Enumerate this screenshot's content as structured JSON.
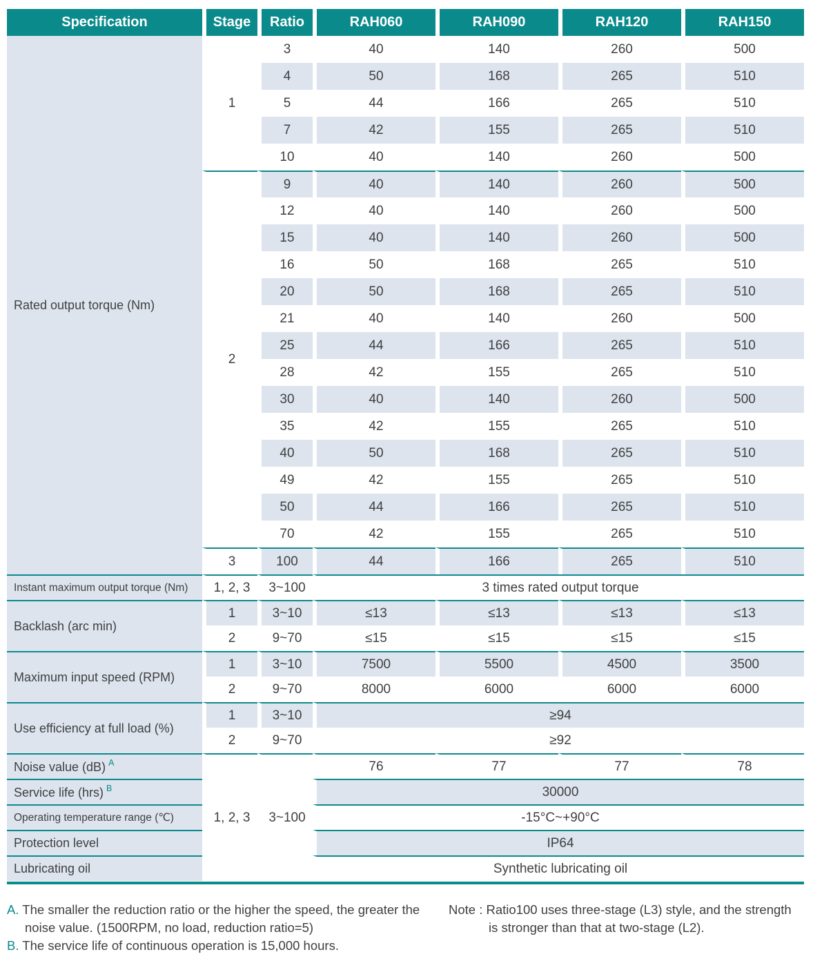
{
  "colors": {
    "teal": "#0b8a8c",
    "row_light": "#dde4ee",
    "text": "#3f3f3f"
  },
  "header": {
    "columns": [
      "Specification",
      "Stage",
      "Ratio",
      "RAH060",
      "RAH090",
      "RAH120",
      "RAH150"
    ]
  },
  "rated_output_torque": {
    "label": "Rated output torque (Nm)",
    "stages": [
      {
        "stage": "1",
        "rows": [
          [
            "3",
            "40",
            "140",
            "260",
            "500"
          ],
          [
            "4",
            "50",
            "168",
            "265",
            "510"
          ],
          [
            "5",
            "44",
            "166",
            "265",
            "510"
          ],
          [
            "7",
            "42",
            "155",
            "265",
            "510"
          ],
          [
            "10",
            "40",
            "140",
            "260",
            "500"
          ]
        ]
      },
      {
        "stage": "2",
        "rows": [
          [
            "9",
            "40",
            "140",
            "260",
            "500"
          ],
          [
            "12",
            "40",
            "140",
            "260",
            "500"
          ],
          [
            "15",
            "40",
            "140",
            "260",
            "500"
          ],
          [
            "16",
            "50",
            "168",
            "265",
            "510"
          ],
          [
            "20",
            "50",
            "168",
            "265",
            "510"
          ],
          [
            "21",
            "40",
            "140",
            "260",
            "500"
          ],
          [
            "25",
            "44",
            "166",
            "265",
            "510"
          ],
          [
            "28",
            "42",
            "155",
            "265",
            "510"
          ],
          [
            "30",
            "40",
            "140",
            "260",
            "500"
          ],
          [
            "35",
            "42",
            "155",
            "265",
            "510"
          ],
          [
            "40",
            "50",
            "168",
            "265",
            "510"
          ],
          [
            "49",
            "42",
            "155",
            "265",
            "510"
          ],
          [
            "50",
            "44",
            "166",
            "265",
            "510"
          ],
          [
            "70",
            "42",
            "155",
            "265",
            "510"
          ]
        ]
      },
      {
        "stage": "3",
        "rows": [
          [
            "100",
            "44",
            "166",
            "265",
            "510"
          ]
        ]
      }
    ]
  },
  "instant_max_torque": {
    "label": "Instant maximum output torque (Nm)",
    "stage": "1, 2, 3",
    "ratio": "3~100",
    "value": "3 times rated output torque"
  },
  "backlash": {
    "label": "Backlash (arc min)",
    "rows": [
      {
        "stage": "1",
        "ratio": "3~10",
        "values": [
          "≤13",
          "≤13",
          "≤13",
          "≤13"
        ]
      },
      {
        "stage": "2",
        "ratio": "9~70",
        "values": [
          "≤15",
          "≤15",
          "≤15",
          "≤15"
        ]
      }
    ]
  },
  "max_input_speed": {
    "label": "Maximum input speed (RPM)",
    "rows": [
      {
        "stage": "1",
        "ratio": "3~10",
        "values": [
          "7500",
          "5500",
          "4500",
          "3500"
        ]
      },
      {
        "stage": "2",
        "ratio": "9~70",
        "values": [
          "8000",
          "6000",
          "6000",
          "6000"
        ]
      }
    ]
  },
  "use_efficiency": {
    "label": "Use efficiency at full load (%)",
    "rows": [
      {
        "stage": "1",
        "ratio": "3~10",
        "value": "≥94"
      },
      {
        "stage": "2",
        "ratio": "9~70",
        "value": "≥92"
      }
    ]
  },
  "common_specs": {
    "stage": "1, 2, 3",
    "ratio": "3~100",
    "rows": [
      {
        "label": "Noise value (dB)",
        "sup": "A",
        "values": [
          "76",
          "77",
          "77",
          "78"
        ],
        "shade": false,
        "small": false
      },
      {
        "label": "Service life (hrs)",
        "sup": "B",
        "value": "30000",
        "shade": true,
        "small": false
      },
      {
        "label": "Operating temperature range (℃)",
        "value": "-15°C~+90°C",
        "shade": false,
        "small": true
      },
      {
        "label": "Protection level",
        "value": "IP64",
        "shade": true,
        "small": false
      },
      {
        "label": "Lubricating oil",
        "value": "Synthetic lubricating oil",
        "shade": false,
        "small": false
      }
    ]
  },
  "footnotes": {
    "a_label": "A.",
    "a_text": "The smaller the reduction ratio or the higher the speed, the greater the noise value. (1500RPM, no load, reduction ratio=5)",
    "b_label": "B.",
    "b_text": "The service life of continuous operation is 15,000 hours.",
    "note_label": "Note :",
    "note_text": "Ratio100 uses three-stage (L3) style, and the strength is stronger than that at two-stage (L2)."
  }
}
